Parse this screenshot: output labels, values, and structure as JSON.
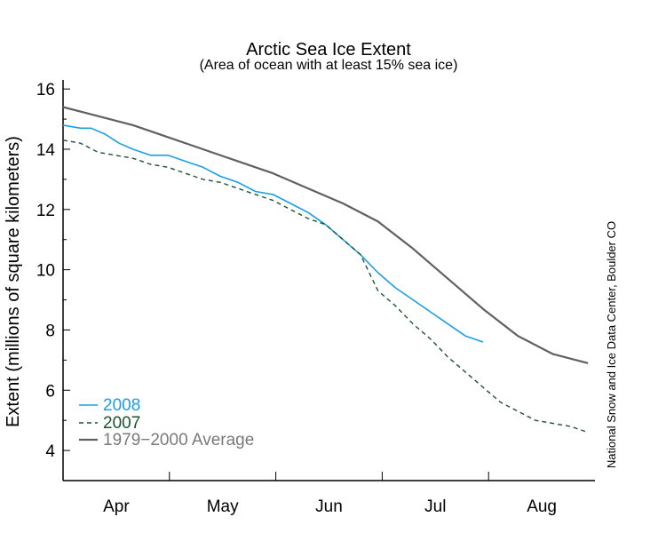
{
  "chart_data": {
    "type": "line",
    "title": "Arctic Sea Ice Extent",
    "subtitle": "(Area of ocean with at least 15% sea ice)",
    "ylabel": "Extent (millions of square kilometers)",
    "xlabel": "",
    "credit": "National Snow and Ice Data Center, Boulder CO",
    "ylim": [
      3,
      16.3
    ],
    "yticks": [
      4,
      6,
      8,
      10,
      12,
      14,
      16
    ],
    "xlim": [
      0,
      152
    ],
    "month_labels": [
      "Apr",
      "May",
      "Jun",
      "Jul",
      "Aug"
    ],
    "grid": false,
    "legend_position": "bottom-left",
    "series": [
      {
        "name": "2008",
        "color": "#1a9ee6",
        "style": "solid",
        "x": [
          0,
          5,
          8,
          12,
          16,
          20,
          25,
          30,
          35,
          40,
          45,
          50,
          55,
          60,
          65,
          70,
          75,
          80,
          85,
          90,
          95,
          100,
          105,
          110,
          115,
          120
        ],
        "y": [
          14.8,
          14.7,
          14.7,
          14.5,
          14.2,
          14.0,
          13.8,
          13.8,
          13.6,
          13.4,
          13.1,
          12.9,
          12.6,
          12.5,
          12.2,
          11.9,
          11.5,
          11.0,
          10.5,
          9.9,
          9.4,
          9.0,
          8.6,
          8.2,
          7.8,
          7.6
        ]
      },
      {
        "name": "2007",
        "color": "#1d5230",
        "style": "dashed",
        "x": [
          0,
          5,
          10,
          15,
          20,
          25,
          30,
          35,
          40,
          45,
          50,
          55,
          60,
          65,
          70,
          75,
          80,
          85,
          90,
          95,
          100,
          105,
          110,
          115,
          120,
          125,
          130,
          135,
          140,
          145,
          150
        ],
        "y": [
          14.3,
          14.2,
          13.9,
          13.8,
          13.7,
          13.5,
          13.4,
          13.2,
          13.0,
          12.9,
          12.7,
          12.5,
          12.3,
          12.0,
          11.7,
          11.5,
          11.0,
          10.5,
          9.3,
          8.8,
          8.2,
          7.7,
          7.1,
          6.6,
          6.1,
          5.6,
          5.3,
          5.0,
          4.9,
          4.8,
          4.6
        ]
      },
      {
        "name": "1979−2000 Average",
        "color": "#606060",
        "style": "solid",
        "x": [
          0,
          10,
          20,
          30,
          40,
          50,
          60,
          70,
          80,
          90,
          100,
          110,
          120,
          130,
          140,
          150
        ],
        "y": [
          15.4,
          15.1,
          14.8,
          14.4,
          14.0,
          13.6,
          13.2,
          12.7,
          12.2,
          11.6,
          10.7,
          9.7,
          8.7,
          7.8,
          7.2,
          6.9
        ]
      }
    ]
  }
}
